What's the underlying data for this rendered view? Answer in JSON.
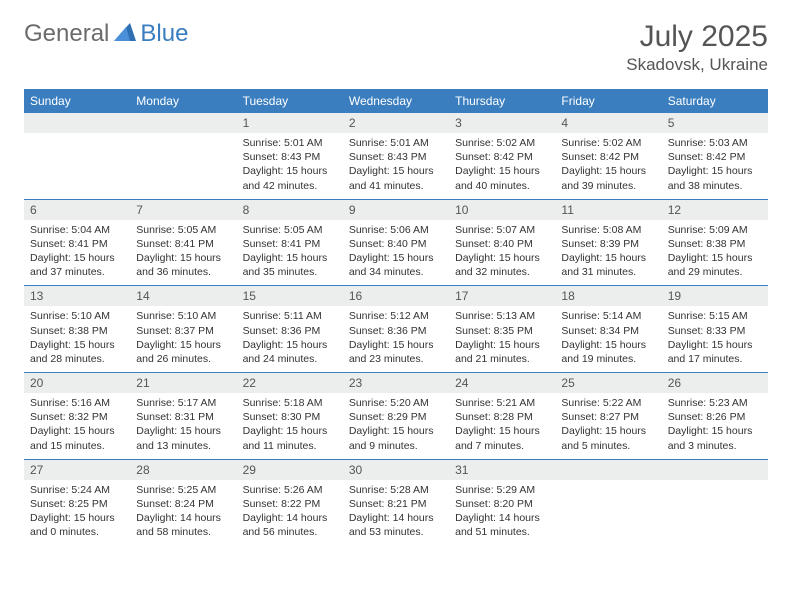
{
  "brand": {
    "part1": "General",
    "part2": "Blue"
  },
  "title": "July 2025",
  "location": "Skadovsk, Ukraine",
  "colors": {
    "header_bg": "#3a7ebf",
    "header_text": "#ffffff",
    "daynum_bg": "#eceded",
    "text_muted": "#555555",
    "cell_text": "#333333",
    "row_border": "#3a7ebf",
    "page_bg": "#ffffff",
    "logo_gray": "#6b6b6b",
    "logo_blue": "#3a7ebf"
  },
  "typography": {
    "title_fontsize": 30,
    "location_fontsize": 17,
    "weekday_fontsize": 12,
    "daynum_fontsize": 12,
    "body_fontsize": 10.5,
    "font_family": "Arial"
  },
  "weekdays": [
    "Sunday",
    "Monday",
    "Tuesday",
    "Wednesday",
    "Thursday",
    "Friday",
    "Saturday"
  ],
  "labels": {
    "sunrise": "Sunrise:",
    "sunset": "Sunset:",
    "daylight": "Daylight:"
  },
  "weeks": [
    [
      {
        "empty": true
      },
      {
        "empty": true
      },
      {
        "day": "1",
        "sunrise": "5:01 AM",
        "sunset": "8:43 PM",
        "daylight": "15 hours and 42 minutes."
      },
      {
        "day": "2",
        "sunrise": "5:01 AM",
        "sunset": "8:43 PM",
        "daylight": "15 hours and 41 minutes."
      },
      {
        "day": "3",
        "sunrise": "5:02 AM",
        "sunset": "8:42 PM",
        "daylight": "15 hours and 40 minutes."
      },
      {
        "day": "4",
        "sunrise": "5:02 AM",
        "sunset": "8:42 PM",
        "daylight": "15 hours and 39 minutes."
      },
      {
        "day": "5",
        "sunrise": "5:03 AM",
        "sunset": "8:42 PM",
        "daylight": "15 hours and 38 minutes."
      }
    ],
    [
      {
        "day": "6",
        "sunrise": "5:04 AM",
        "sunset": "8:41 PM",
        "daylight": "15 hours and 37 minutes."
      },
      {
        "day": "7",
        "sunrise": "5:05 AM",
        "sunset": "8:41 PM",
        "daylight": "15 hours and 36 minutes."
      },
      {
        "day": "8",
        "sunrise": "5:05 AM",
        "sunset": "8:41 PM",
        "daylight": "15 hours and 35 minutes."
      },
      {
        "day": "9",
        "sunrise": "5:06 AM",
        "sunset": "8:40 PM",
        "daylight": "15 hours and 34 minutes."
      },
      {
        "day": "10",
        "sunrise": "5:07 AM",
        "sunset": "8:40 PM",
        "daylight": "15 hours and 32 minutes."
      },
      {
        "day": "11",
        "sunrise": "5:08 AM",
        "sunset": "8:39 PM",
        "daylight": "15 hours and 31 minutes."
      },
      {
        "day": "12",
        "sunrise": "5:09 AM",
        "sunset": "8:38 PM",
        "daylight": "15 hours and 29 minutes."
      }
    ],
    [
      {
        "day": "13",
        "sunrise": "5:10 AM",
        "sunset": "8:38 PM",
        "daylight": "15 hours and 28 minutes."
      },
      {
        "day": "14",
        "sunrise": "5:10 AM",
        "sunset": "8:37 PM",
        "daylight": "15 hours and 26 minutes."
      },
      {
        "day": "15",
        "sunrise": "5:11 AM",
        "sunset": "8:36 PM",
        "daylight": "15 hours and 24 minutes."
      },
      {
        "day": "16",
        "sunrise": "5:12 AM",
        "sunset": "8:36 PM",
        "daylight": "15 hours and 23 minutes."
      },
      {
        "day": "17",
        "sunrise": "5:13 AM",
        "sunset": "8:35 PM",
        "daylight": "15 hours and 21 minutes."
      },
      {
        "day": "18",
        "sunrise": "5:14 AM",
        "sunset": "8:34 PM",
        "daylight": "15 hours and 19 minutes."
      },
      {
        "day": "19",
        "sunrise": "5:15 AM",
        "sunset": "8:33 PM",
        "daylight": "15 hours and 17 minutes."
      }
    ],
    [
      {
        "day": "20",
        "sunrise": "5:16 AM",
        "sunset": "8:32 PM",
        "daylight": "15 hours and 15 minutes."
      },
      {
        "day": "21",
        "sunrise": "5:17 AM",
        "sunset": "8:31 PM",
        "daylight": "15 hours and 13 minutes."
      },
      {
        "day": "22",
        "sunrise": "5:18 AM",
        "sunset": "8:30 PM",
        "daylight": "15 hours and 11 minutes."
      },
      {
        "day": "23",
        "sunrise": "5:20 AM",
        "sunset": "8:29 PM",
        "daylight": "15 hours and 9 minutes."
      },
      {
        "day": "24",
        "sunrise": "5:21 AM",
        "sunset": "8:28 PM",
        "daylight": "15 hours and 7 minutes."
      },
      {
        "day": "25",
        "sunrise": "5:22 AM",
        "sunset": "8:27 PM",
        "daylight": "15 hours and 5 minutes."
      },
      {
        "day": "26",
        "sunrise": "5:23 AM",
        "sunset": "8:26 PM",
        "daylight": "15 hours and 3 minutes."
      }
    ],
    [
      {
        "day": "27",
        "sunrise": "5:24 AM",
        "sunset": "8:25 PM",
        "daylight": "15 hours and 0 minutes."
      },
      {
        "day": "28",
        "sunrise": "5:25 AM",
        "sunset": "8:24 PM",
        "daylight": "14 hours and 58 minutes."
      },
      {
        "day": "29",
        "sunrise": "5:26 AM",
        "sunset": "8:22 PM",
        "daylight": "14 hours and 56 minutes."
      },
      {
        "day": "30",
        "sunrise": "5:28 AM",
        "sunset": "8:21 PM",
        "daylight": "14 hours and 53 minutes."
      },
      {
        "day": "31",
        "sunrise": "5:29 AM",
        "sunset": "8:20 PM",
        "daylight": "14 hours and 51 minutes."
      },
      {
        "empty": true
      },
      {
        "empty": true
      }
    ]
  ]
}
